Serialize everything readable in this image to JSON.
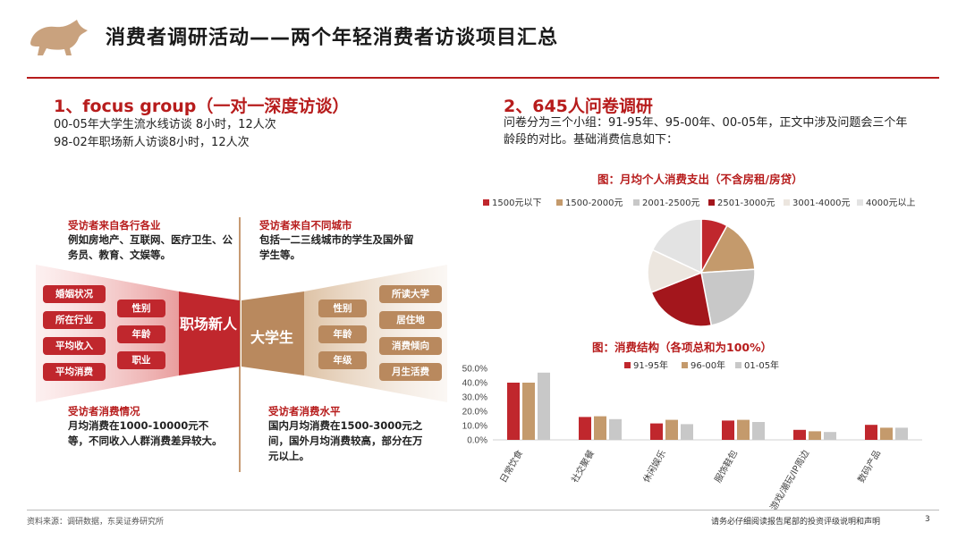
{
  "colors": {
    "accent": "#b71c1c",
    "tan": "#b9895e",
    "grey": "#c8c8c8"
  },
  "header": {
    "title": "消费者调研活动——两个年轻消费者访谈项目汇总",
    "logo_icon": "bull-icon"
  },
  "section1": {
    "heading": "1、focus group（一对一深度访谈）",
    "lines": [
      "00-05年大学生流水线访谈 8小时，12人次",
      "98-02年职场新人访谈8小时，12人次"
    ]
  },
  "section2": {
    "heading": "2、645人问卷调研",
    "text": "问卷分为三个小组：91-95年、95-00年、00-05年，正文中涉及问题会三个年龄段的对比。基础消费信息如下："
  },
  "notes": {
    "top_left": {
      "title": "受访者来自各行各业",
      "body": "例如房地产、互联网、医疗卫生、公务员、教育、文娱等。"
    },
    "top_right": {
      "title": "受访者来自不同城市",
      "body": "包括一二三线城市的学生及国外留学生等。"
    },
    "bottom_left": {
      "title": "受访者消费情况",
      "body": "月均消费在1000-10000元不等，不同收入人群消费差异较大。"
    },
    "bottom_right": {
      "title": "受访者消费水平",
      "body": "国内月均消费在1500-3000元之间，国外月均消费较高，部分在万元以上。"
    }
  },
  "funnel": {
    "left_center": "职场新人",
    "right_center": "大学生",
    "left_outer": [
      "婚姻状况",
      "所在行业",
      "平均收入",
      "平均消费"
    ],
    "left_inner": [
      "性别",
      "年龄",
      "职业"
    ],
    "right_inner": [
      "性别",
      "年龄",
      "年级"
    ],
    "right_outer": [
      "所读大学",
      "居住地",
      "消费倾向",
      "月生活费"
    ]
  },
  "chart_data": [
    {
      "type": "pie",
      "title": "图：月均个人消费支出（不含房租/房贷）",
      "labels": [
        "1500元以下",
        "1500-2000元",
        "2001-2500元",
        "2501-3000元",
        "3001-4000元",
        "4000元以上"
      ],
      "values": [
        8,
        16,
        23,
        22,
        13,
        18
      ],
      "colors": [
        "#c0272d",
        "#c49a6c",
        "#c8c8c8",
        "#a3161c",
        "#ece6df",
        "#e3e3e3"
      ]
    },
    {
      "type": "bar",
      "title": "图：消费结构（各项总和为100%）",
      "categories": [
        "日常饮食",
        "社交聚餐",
        "休闲娱乐",
        "服饰鞋包",
        "游戏/潮玩/IP周边",
        "数码产品"
      ],
      "series": [
        {
          "name": "91-95年",
          "values": [
            40.0,
            16.0,
            11.5,
            13.5,
            7.0,
            10.5
          ],
          "color": "#c0272d"
        },
        {
          "name": "96-00年",
          "values": [
            40.0,
            16.5,
            14.0,
            14.0,
            6.0,
            8.5
          ],
          "color": "#c49a6c"
        },
        {
          "name": "01-05年",
          "values": [
            47.0,
            14.5,
            11.0,
            12.5,
            5.5,
            8.5
          ],
          "color": "#c8c8c8"
        }
      ],
      "ylim": [
        0,
        50
      ],
      "yticks": [
        "0.0%",
        "10.0%",
        "20.0%",
        "30.0%",
        "40.0%",
        "50.0%"
      ]
    }
  ],
  "footer": {
    "source": "资料来源：调研数据，东吴证券研究所",
    "disclaimer": "请务必仔细阅读报告尾部的投资评级说明和声明",
    "page": "3"
  }
}
